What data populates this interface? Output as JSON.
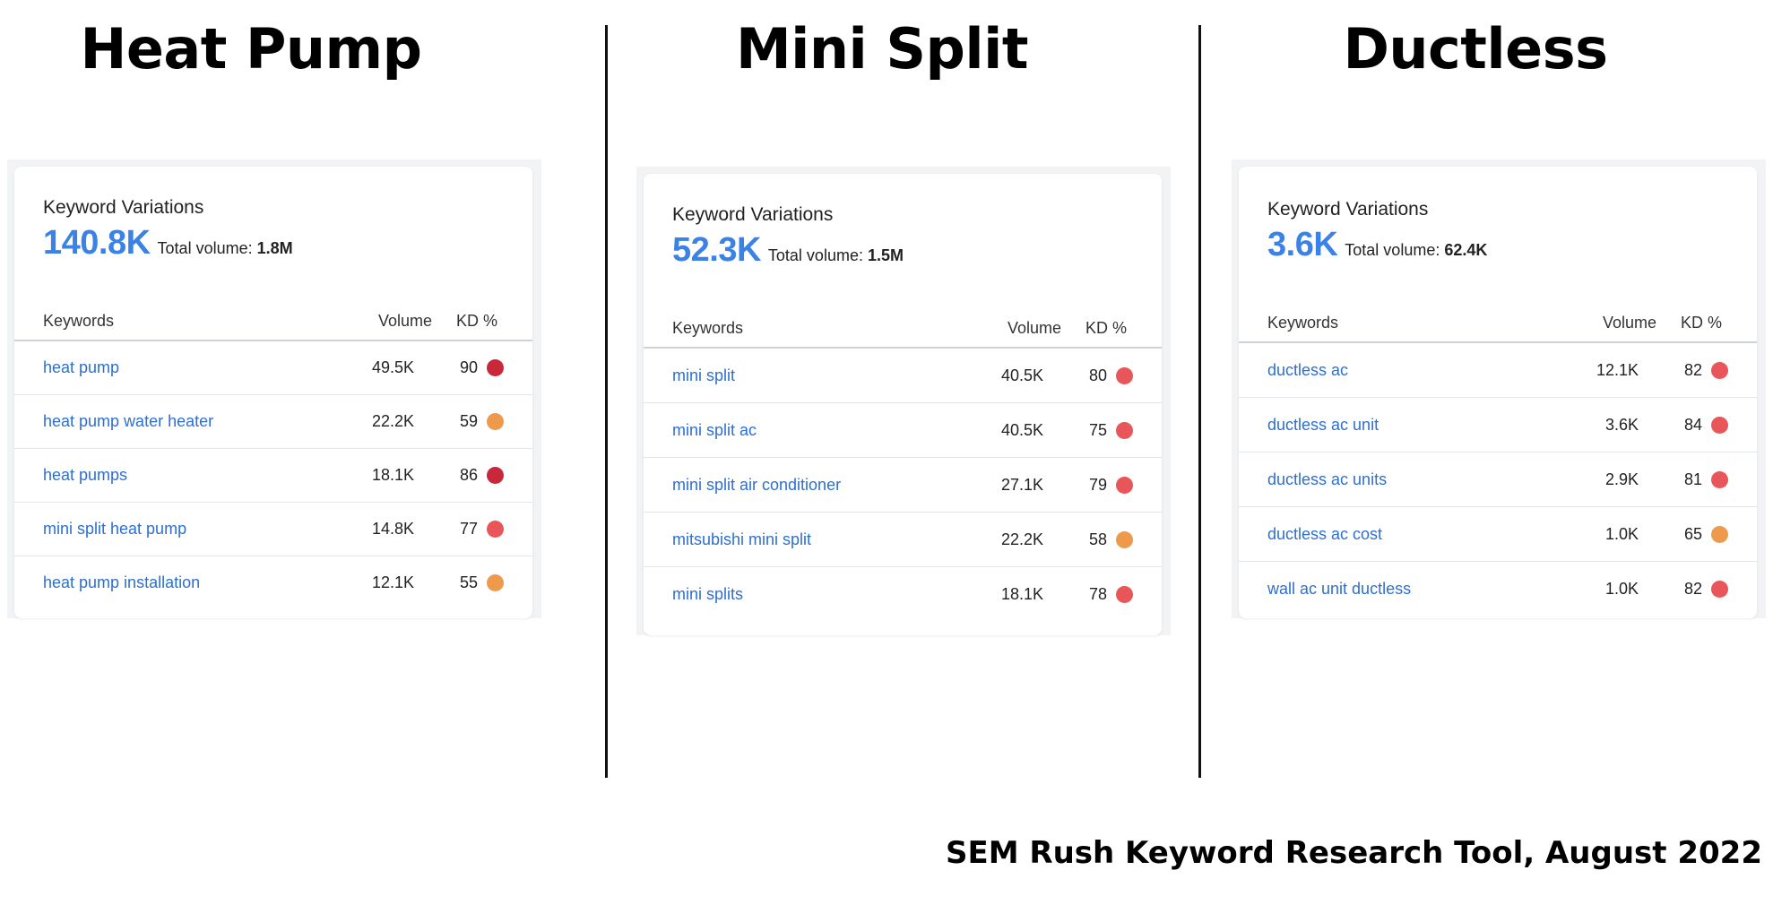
{
  "columns": [
    {
      "title": "Heat Pump",
      "card": {
        "label": "Keyword Variations",
        "count": "140.8K",
        "total_label": "Total volume:",
        "total_value": "1.8M",
        "headers": {
          "keywords": "Keywords",
          "volume": "Volume",
          "kd": "KD %"
        },
        "rows": [
          {
            "keyword": "heat pump",
            "volume": "49.5K",
            "kd": "90",
            "kd_color": "#c8283a"
          },
          {
            "keyword": "heat pump water heater",
            "volume": "22.2K",
            "kd": "59",
            "kd_color": "#ee9a4d"
          },
          {
            "keyword": "heat pumps",
            "volume": "18.1K",
            "kd": "86",
            "kd_color": "#c8283a"
          },
          {
            "keyword": "mini split heat pump",
            "volume": "14.8K",
            "kd": "77",
            "kd_color": "#e8565a"
          },
          {
            "keyword": "heat pump installation",
            "volume": "12.1K",
            "kd": "55",
            "kd_color": "#ee9a4d"
          }
        ]
      }
    },
    {
      "title": "Mini Split",
      "card": {
        "label": "Keyword Variations",
        "count": "52.3K",
        "total_label": "Total volume:",
        "total_value": "1.5M",
        "headers": {
          "keywords": "Keywords",
          "volume": "Volume",
          "kd": "KD %"
        },
        "rows": [
          {
            "keyword": "mini split",
            "volume": "40.5K",
            "kd": "80",
            "kd_color": "#e8565a"
          },
          {
            "keyword": "mini split ac",
            "volume": "40.5K",
            "kd": "75",
            "kd_color": "#e8565a"
          },
          {
            "keyword": "mini split air conditioner",
            "volume": "27.1K",
            "kd": "79",
            "kd_color": "#e8565a"
          },
          {
            "keyword": "mitsubishi mini split",
            "volume": "22.2K",
            "kd": "58",
            "kd_color": "#ee9a4d"
          },
          {
            "keyword": "mini splits",
            "volume": "18.1K",
            "kd": "78",
            "kd_color": "#e8565a"
          }
        ]
      }
    },
    {
      "title": "Ductless",
      "card": {
        "label": "Keyword Variations",
        "count": "3.6K",
        "total_label": "Total volume:",
        "total_value": "62.4K",
        "headers": {
          "keywords": "Keywords",
          "volume": "Volume",
          "kd": "KD %"
        },
        "rows": [
          {
            "keyword": "ductless ac",
            "volume": "12.1K",
            "kd": "82",
            "kd_color": "#e8565a"
          },
          {
            "keyword": "ductless ac unit",
            "volume": "3.6K",
            "kd": "84",
            "kd_color": "#e8565a"
          },
          {
            "keyword": "ductless ac units",
            "volume": "2.9K",
            "kd": "81",
            "kd_color": "#e8565a"
          },
          {
            "keyword": "ductless ac cost",
            "volume": "1.0K",
            "kd": "65",
            "kd_color": "#ee9a4d"
          },
          {
            "keyword": "wall ac unit ductless",
            "volume": "1.0K",
            "kd": "82",
            "kd_color": "#e8565a"
          }
        ]
      }
    }
  ],
  "footer": "SEM Rush Keyword Research Tool, August 2022"
}
